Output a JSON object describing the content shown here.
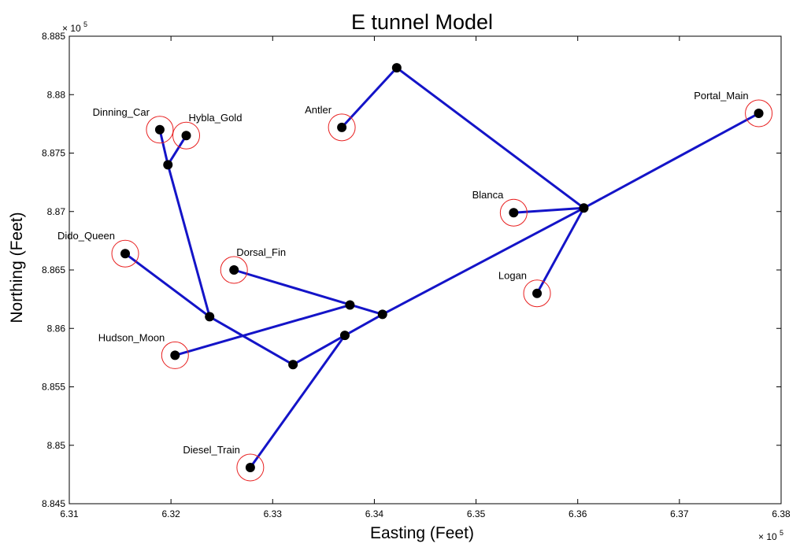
{
  "chart_data": {
    "type": "scatter",
    "title": "E tunnel Model",
    "xlabel": "Easting (Feet)",
    "ylabel": "Northing (Feet)",
    "x_exponent_label": "× 10",
    "x_exponent_power": "5",
    "y_exponent_label": "× 10",
    "y_exponent_power": "5",
    "xlim": [
      6.31,
      6.38
    ],
    "ylim": [
      8.845,
      8.885
    ],
    "x_ticks": [
      "6.31",
      "6.32",
      "6.33",
      "6.34",
      "6.35",
      "6.36",
      "6.37",
      "6.38"
    ],
    "y_ticks": [
      "8.845",
      "8.85",
      "8.855",
      "8.86",
      "8.865",
      "8.87",
      "8.875",
      "8.88",
      "8.885"
    ],
    "grid": false,
    "colors": {
      "line": "#1414c8",
      "marker": "#000000",
      "circle": "#e82020",
      "axis": "#000000"
    },
    "nodes": {
      "portal_main": [
        6.3778,
        8.8784
      ],
      "junction_a": [
        6.3606,
        8.8703
      ],
      "blanca": [
        6.3537,
        8.8699
      ],
      "logan": [
        6.356,
        8.863
      ],
      "top_bend": [
        6.3422,
        8.8823
      ],
      "antler": [
        6.3368,
        8.8772
      ],
      "junction_b": [
        6.3408,
        8.8612
      ],
      "junction_c": [
        6.3371,
        8.8594
      ],
      "diesel_train": [
        6.3278,
        8.8481
      ],
      "junction_d": [
        6.3376,
        8.862
      ],
      "dorsal_fin": [
        6.3262,
        8.865
      ],
      "hudson_moon": [
        6.3204,
        8.8577
      ],
      "junction_e": [
        6.332,
        8.8569
      ],
      "junction_f": [
        6.3238,
        8.861
      ],
      "dido_queen": [
        6.3155,
        8.8664
      ],
      "junction_g": [
        6.3197,
        8.874
      ],
      "dinning_car": [
        6.3189,
        8.877
      ],
      "hybla_gold": [
        6.3215,
        8.8765
      ]
    },
    "segments": [
      [
        "portal_main",
        "junction_a"
      ],
      [
        "junction_a",
        "blanca"
      ],
      [
        "junction_a",
        "logan"
      ],
      [
        "junction_a",
        "top_bend"
      ],
      [
        "top_bend",
        "antler"
      ],
      [
        "junction_a",
        "junction_b"
      ],
      [
        "junction_b",
        "junction_c"
      ],
      [
        "junction_c",
        "diesel_train"
      ],
      [
        "junction_b",
        "dorsal_fin"
      ],
      [
        "junction_c",
        "junction_e"
      ],
      [
        "junction_e",
        "junction_f"
      ],
      [
        "junction_f",
        "dido_queen"
      ],
      [
        "junction_f",
        "junction_g"
      ],
      [
        "junction_g",
        "dinning_car"
      ],
      [
        "junction_g",
        "hybla_gold"
      ],
      [
        "hudson_moon",
        "junction_d"
      ]
    ],
    "labeled_points": [
      {
        "id": "portal_main",
        "label": "Portal_Main",
        "label_anchor": "end",
        "label_side": "upper-left"
      },
      {
        "id": "blanca",
        "label": "Blanca",
        "label_anchor": "end",
        "label_side": "upper-left"
      },
      {
        "id": "logan",
        "label": "Logan",
        "label_anchor": "end",
        "label_side": "upper-left"
      },
      {
        "id": "antler",
        "label": "Antler",
        "label_anchor": "end",
        "label_side": "upper-left"
      },
      {
        "id": "diesel_train",
        "label": "Diesel_Train",
        "label_anchor": "end",
        "label_side": "upper-left"
      },
      {
        "id": "dorsal_fin",
        "label": "Dorsal_Fin",
        "label_anchor": "start",
        "label_side": "upper-right"
      },
      {
        "id": "hudson_moon",
        "label": "Hudson_Moon",
        "label_anchor": "end",
        "label_side": "upper-left"
      },
      {
        "id": "dido_queen",
        "label": "Dido_Queen",
        "label_anchor": "end",
        "label_side": "upper-left"
      },
      {
        "id": "dinning_car",
        "label": "Dinning_Car",
        "label_anchor": "end",
        "label_side": "upper-left"
      },
      {
        "id": "hybla_gold",
        "label": "Hybla_Gold",
        "label_anchor": "start",
        "label_side": "upper-right"
      }
    ],
    "unlabeled_points": [
      "junction_a",
      "top_bend",
      "junction_b",
      "junction_c",
      "junction_d",
      "junction_e",
      "junction_f",
      "junction_g"
    ]
  }
}
